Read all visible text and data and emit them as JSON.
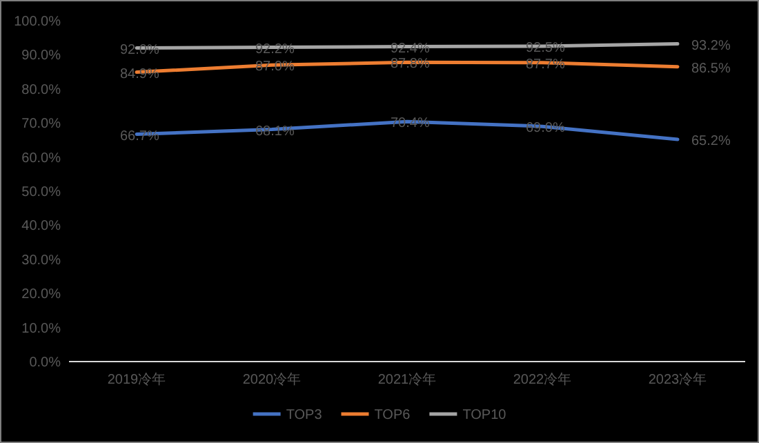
{
  "chart_data": {
    "type": "line",
    "categories": [
      "2019冷年",
      "2020冷年",
      "2021冷年",
      "2022冷年",
      "2023冷年"
    ],
    "series": [
      {
        "name": "TOP3",
        "color": "#4472c4",
        "values": [
          66.7,
          68.1,
          70.4,
          69.0,
          65.2
        ],
        "value_labels": [
          "66.7%",
          "68.1%",
          "70.4%",
          "69.0%",
          "65.2%"
        ]
      },
      {
        "name": "TOP6",
        "color": "#ed7d31",
        "values": [
          84.9,
          87.0,
          87.8,
          87.7,
          86.5
        ],
        "value_labels": [
          "84.9%",
          "87.0%",
          "87.8%",
          "87.7%",
          "86.5%"
        ]
      },
      {
        "name": "TOP10",
        "color": "#a5a5a5",
        "values": [
          92.0,
          92.2,
          92.4,
          92.5,
          93.2
        ],
        "value_labels": [
          "92.0%",
          "92.2%",
          "92.4%",
          "92.5%",
          "93.2%"
        ]
      }
    ],
    "ylim": [
      0,
      100
    ],
    "yticks": [
      {
        "value": 0,
        "label": "0.0%"
      },
      {
        "value": 10,
        "label": "10.0%"
      },
      {
        "value": 20,
        "label": "20.0%"
      },
      {
        "value": 30,
        "label": "30.0%"
      },
      {
        "value": 40,
        "label": "40.0%"
      },
      {
        "value": 50,
        "label": "50.0%"
      },
      {
        "value": 60,
        "label": "60.0%"
      },
      {
        "value": 70,
        "label": "70.0%"
      },
      {
        "value": 80,
        "label": "80.0%"
      },
      {
        "value": 90,
        "label": "90.0%"
      },
      {
        "value": 100,
        "label": "100.0%"
      }
    ],
    "legend": "bottom",
    "grid": false,
    "marker": "none",
    "line_style": "solid"
  }
}
